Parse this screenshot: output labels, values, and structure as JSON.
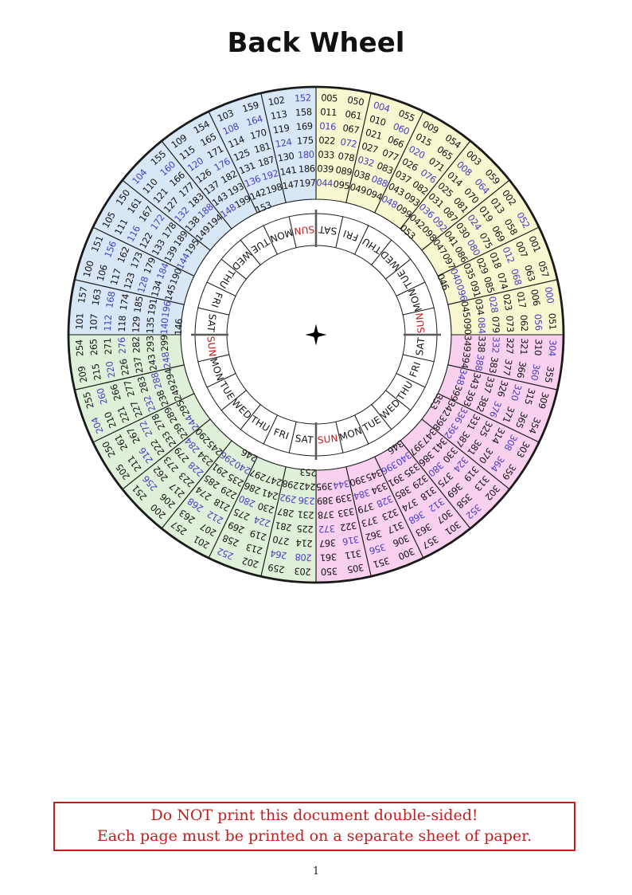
{
  "title": "Back Wheel",
  "page_number": "1",
  "warning": {
    "line1": "Do NOT print this document double-sided!",
    "line2": "Each page must be printed on a separate sheet of paper."
  },
  "wheel": {
    "colors": {
      "000s": "#f7f7d0",
      "100s": "#d8e7f6",
      "200s": "#def0d8",
      "300s": "#f9d0ee",
      "leap_text": "#4a3fc6",
      "year_text": "#141414",
      "day_text": "#141414",
      "sunday_text": "#c41e1e",
      "line": "#1a1a1a",
      "quadrant_divider": "#5a5a5a"
    },
    "day_cells": [
      "SAT",
      "FRI",
      "THU",
      "WED",
      "TUE",
      "MON",
      "SUN",
      "SAT",
      "FRI",
      "THU",
      "WED",
      "TUE",
      "MON",
      "SUN",
      "SAT",
      "FRI",
      "THU",
      "WED",
      "TUE",
      "MON",
      "SUN",
      "SAT",
      "FRI",
      "THU",
      "WED",
      "TUE",
      "MON",
      "SUN"
    ],
    "sectors": [
      {
        "group": "000s",
        "col1": [
          "005",
          "011",
          "016",
          "022",
          "033",
          "039",
          "044"
        ],
        "col2": [
          "050",
          "061",
          "067",
          "072",
          "078",
          "089",
          "095"
        ]
      },
      {
        "group": "000s",
        "col1": [
          "004",
          "010",
          "021",
          "027",
          "032",
          "038",
          "049"
        ],
        "col2": [
          "055",
          "060",
          "066",
          "077",
          "083",
          "088",
          "094"
        ]
      },
      {
        "group": "000s",
        "col1": [
          "009",
          "015",
          "020",
          "026",
          "037",
          "043",
          "048"
        ],
        "col2": [
          "054",
          "065",
          "071",
          "076",
          "082",
          "093",
          "099"
        ]
      },
      {
        "group": "000s",
        "col1": [
          "003",
          "008",
          "014",
          "025",
          "031",
          "036",
          "042",
          "053"
        ],
        "col2": [
          "059",
          "064",
          "070",
          "081",
          "087",
          "092",
          "098"
        ]
      },
      {
        "group": "000s",
        "col1": [
          "002",
          "013",
          "019",
          "024",
          "030",
          "041",
          "047"
        ],
        "col2": [
          "052",
          "058",
          "069",
          "075",
          "080",
          "086",
          "097"
        ]
      },
      {
        "group": "000s",
        "col1": [
          "001",
          "007",
          "012",
          "018",
          "029",
          "035",
          "040",
          "046"
        ],
        "col2": [
          "057",
          "063",
          "068",
          "074",
          "085",
          "091",
          "096"
        ]
      },
      {
        "group": "000s",
        "col1": [
          "000",
          "006",
          "017",
          "023",
          "028",
          "034",
          "045"
        ],
        "col2": [
          "051",
          "056",
          "062",
          "073",
          "079",
          "084",
          "090"
        ]
      },
      {
        "group": "300s",
        "col1": [
          "304",
          "310",
          "321",
          "327",
          "332",
          "338",
          "349"
        ],
        "col2": [
          "355",
          "360",
          "366",
          "377",
          "383",
          "388",
          "394"
        ]
      },
      {
        "group": "300s",
        "col1": [
          "309",
          "315",
          "320",
          "326",
          "337",
          "343",
          "348"
        ],
        "col2": [
          "354",
          "365",
          "371",
          "376",
          "382",
          "393",
          "399"
        ]
      },
      {
        "group": "300s",
        "col1": [
          "303",
          "308",
          "314",
          "325",
          "331",
          "336",
          "342",
          "353"
        ],
        "col2": [
          "359",
          "364",
          "370",
          "381",
          "387",
          "392",
          "398"
        ]
      },
      {
        "group": "300s",
        "col1": [
          "302",
          "313",
          "319",
          "324",
          "330",
          "341",
          "347"
        ],
        "col2": [
          "352",
          "358",
          "369",
          "375",
          "380",
          "386",
          "397"
        ]
      },
      {
        "group": "300s",
        "col1": [
          "301",
          "307",
          "312",
          "318",
          "329",
          "335",
          "340",
          "346"
        ],
        "col2": [
          "357",
          "363",
          "368",
          "374",
          "385",
          "391",
          "396"
        ]
      },
      {
        "group": "300s",
        "col1": [
          "300",
          "306",
          "317",
          "323",
          "328",
          "334",
          "345"
        ],
        "col2": [
          "351",
          "356",
          "362",
          "373",
          "379",
          "384",
          "390"
        ]
      },
      {
        "group": "300s",
        "col1": [
          "305",
          "311",
          "316",
          "322",
          "333",
          "339",
          "344"
        ],
        "col2": [
          "350",
          "361",
          "367",
          "372",
          "378",
          "389",
          "395"
        ]
      },
      {
        "group": "200s",
        "col1": [
          "203",
          "208",
          "214",
          "225",
          "231",
          "236",
          "242",
          "253"
        ],
        "col2": [
          "259",
          "264",
          "270",
          "281",
          "287",
          "292",
          "298"
        ]
      },
      {
        "group": "200s",
        "col1": [
          "202",
          "213",
          "219",
          "224",
          "230",
          "241",
          "247"
        ],
        "col2": [
          "252",
          "258",
          "269",
          "275",
          "280",
          "286",
          "297"
        ]
      },
      {
        "group": "200s",
        "col1": [
          "201",
          "207",
          "212",
          "218",
          "229",
          "235",
          "240",
          "246"
        ],
        "col2": [
          "257",
          "263",
          "268",
          "274",
          "285",
          "291",
          "296"
        ]
      },
      {
        "group": "200s",
        "col1": [
          "200",
          "206",
          "217",
          "223",
          "228",
          "234",
          "245"
        ],
        "col2": [
          "251",
          "256",
          "262",
          "273",
          "279",
          "284",
          "290"
        ]
      },
      {
        "group": "200s",
        "col1": [
          "205",
          "211",
          "216",
          "222",
          "233",
          "239",
          "244"
        ],
        "col2": [
          "250",
          "261",
          "267",
          "272",
          "278",
          "289",
          "295"
        ]
      },
      {
        "group": "200s",
        "col1": [
          "204",
          "210",
          "221",
          "227",
          "232",
          "238",
          "249"
        ],
        "col2": [
          "255",
          "260",
          "266",
          "277",
          "283",
          "288",
          "294"
        ]
      },
      {
        "group": "200s",
        "col1": [
          "209",
          "215",
          "220",
          "226",
          "237",
          "243",
          "248"
        ],
        "col2": [
          "254",
          "265",
          "271",
          "276",
          "282",
          "293",
          "299"
        ]
      },
      {
        "group": "100s",
        "col1": [
          "101",
          "107",
          "112",
          "118",
          "129",
          "135",
          "140",
          "146"
        ],
        "col2": [
          "157",
          "163",
          "168",
          "174",
          "185",
          "191",
          "196"
        ]
      },
      {
        "group": "100s",
        "col1": [
          "100",
          "106",
          "117",
          "123",
          "128",
          "134",
          "145"
        ],
        "col2": [
          "151",
          "156",
          "162",
          "173",
          "179",
          "184",
          "190"
        ]
      },
      {
        "group": "100s",
        "col1": [
          "105",
          "111",
          "116",
          "122",
          "133",
          "139",
          "144"
        ],
        "col2": [
          "150",
          "161",
          "167",
          "172",
          "178",
          "189",
          "195"
        ]
      },
      {
        "group": "100s",
        "col1": [
          "104",
          "110",
          "121",
          "127",
          "132",
          "138",
          "149"
        ],
        "col2": [
          "155",
          "160",
          "166",
          "177",
          "183",
          "188",
          "194"
        ]
      },
      {
        "group": "100s",
        "col1": [
          "109",
          "115",
          "120",
          "126",
          "137",
          "143",
          "148"
        ],
        "col2": [
          "154",
          "165",
          "171",
          "176",
          "182",
          "193",
          "199"
        ]
      },
      {
        "group": "100s",
        "col1": [
          "103",
          "108",
          "114",
          "125",
          "131",
          "136",
          "142",
          "153"
        ],
        "col2": [
          "159",
          "164",
          "170",
          "181",
          "187",
          "192",
          "198"
        ]
      },
      {
        "group": "100s",
        "col1": [
          "102",
          "113",
          "119",
          "124",
          "130",
          "141",
          "147"
        ],
        "col2": [
          "152",
          "158",
          "169",
          "175",
          "180",
          "186",
          "197"
        ]
      }
    ]
  }
}
